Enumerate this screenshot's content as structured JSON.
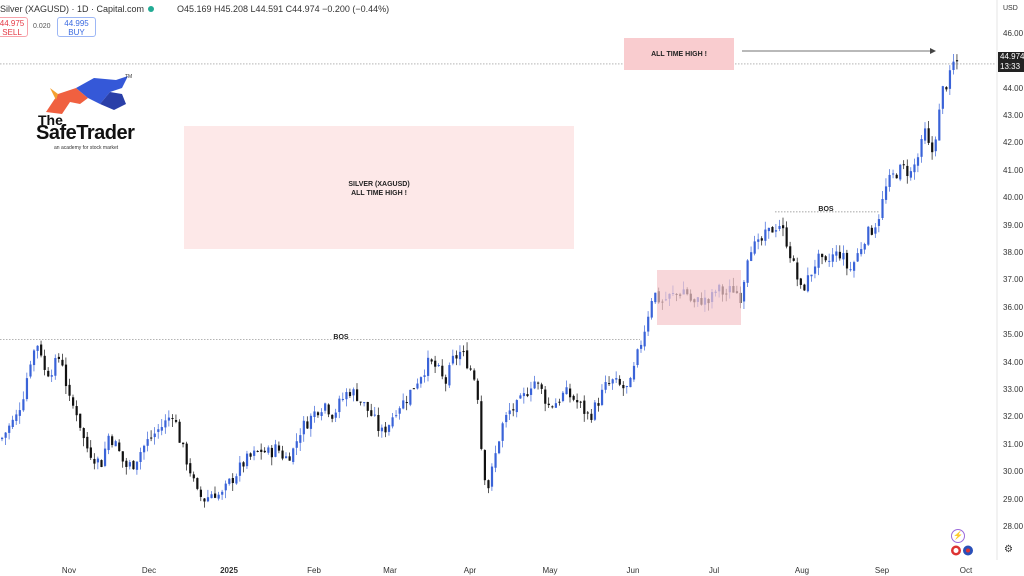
{
  "header": {
    "title": "Silver (XAGUSD) · 1D · Capital.com",
    "ohlc": "O45.169 H45.208 L44.591 C44.974 −0.200 (−0.44%)",
    "sell_price": "44.975",
    "sell_label": "SELL",
    "spread": "0.020",
    "buy_price": "44.995",
    "buy_label": "BUY"
  },
  "logo": {
    "the": "The",
    "name": "SafeTrader",
    "tagline": "an academy for stock market",
    "tm": "TM"
  },
  "annotations": {
    "center_box_line1": "SILVER (XAGUSD)",
    "center_box_line2": "ALL TIME HIGH !",
    "top_box": "ALL TIME HIGH !",
    "bos_1": "BOS",
    "bos_2": "BOS"
  },
  "axis": {
    "currency": "USD",
    "last_price": "44.974",
    "countdown": "13:33"
  },
  "colors": {
    "up": "#3a63d8",
    "down": "#111111",
    "highlight": "#fde8e8",
    "zone": "#f5c6ca"
  },
  "chart_data": {
    "type": "candlestick",
    "title": "",
    "ylim": [
      27.8,
      46.3
    ],
    "yticks": [
      28,
      29,
      30,
      31,
      32,
      33,
      34,
      35,
      36,
      37,
      38,
      39,
      40,
      41,
      42,
      43,
      44,
      45,
      46
    ],
    "ytick_labels": [
      "28.00",
      "29.00",
      "30.00",
      "31.00",
      "32.00",
      "33.00",
      "34.00",
      "35.00",
      "36.00",
      "37.00",
      "38.00",
      "39.00",
      "40.00",
      "41.00",
      "42.00",
      "43.00",
      "44.00",
      "45.00",
      "46.00"
    ],
    "xticks": [
      "Nov",
      "Dec",
      "2025",
      "Feb",
      "Mar",
      "Apr",
      "May",
      "Jun",
      "Jul",
      "Aug",
      "Sep",
      "Oct"
    ],
    "levels": [
      {
        "name": "BOS",
        "y": 34.85
      },
      {
        "name": "BOS",
        "y": 39.5
      },
      {
        "name": "ALL TIME HIGH",
        "y": 44.9
      }
    ],
    "path_anchors": [
      [
        0,
        31.2
      ],
      [
        5,
        31.5
      ],
      [
        15,
        32.0
      ],
      [
        22,
        32.8
      ],
      [
        30,
        34.2
      ],
      [
        38,
        34.8
      ],
      [
        44,
        33.6
      ],
      [
        52,
        33.8
      ],
      [
        60,
        34.3
      ],
      [
        68,
        32.6
      ],
      [
        76,
        32.2
      ],
      [
        84,
        31.0
      ],
      [
        92,
        30.6
      ],
      [
        100,
        30.3
      ],
      [
        108,
        31.4
      ],
      [
        116,
        30.9
      ],
      [
        124,
        30.2
      ],
      [
        132,
        30.3
      ],
      [
        140,
        30.8
      ],
      [
        148,
        31.2
      ],
      [
        156,
        31.5
      ],
      [
        164,
        31.8
      ],
      [
        172,
        32.2
      ],
      [
        180,
        31.0
      ],
      [
        188,
        30.2
      ],
      [
        196,
        29.2
      ],
      [
        204,
        29.0
      ],
      [
        212,
        29.3
      ],
      [
        220,
        29.1
      ],
      [
        228,
        29.6
      ],
      [
        236,
        30.0
      ],
      [
        244,
        30.4
      ],
      [
        252,
        30.6
      ],
      [
        260,
        30.8
      ],
      [
        268,
        30.7
      ],
      [
        276,
        30.9
      ],
      [
        284,
        30.5
      ],
      [
        292,
        30.8
      ],
      [
        300,
        31.6
      ],
      [
        308,
        31.9
      ],
      [
        316,
        32.3
      ],
      [
        324,
        32.5
      ],
      [
        332,
        32.1
      ],
      [
        340,
        32.6
      ],
      [
        348,
        33.0
      ],
      [
        356,
        32.8
      ],
      [
        364,
        32.4
      ],
      [
        372,
        32.0
      ],
      [
        380,
        31.4
      ],
      [
        388,
        31.8
      ],
      [
        396,
        32.4
      ],
      [
        404,
        32.6
      ],
      [
        412,
        33.1
      ],
      [
        420,
        33.6
      ],
      [
        428,
        34.0
      ],
      [
        436,
        33.8
      ],
      [
        444,
        33.2
      ],
      [
        452,
        34.1
      ],
      [
        460,
        34.4
      ],
      [
        468,
        33.9
      ],
      [
        476,
        33.2
      ],
      [
        480,
        31.0
      ],
      [
        486,
        29.3
      ],
      [
        492,
        30.2
      ],
      [
        500,
        31.6
      ],
      [
        508,
        32.2
      ],
      [
        516,
        32.4
      ],
      [
        524,
        32.8
      ],
      [
        532,
        33.4
      ],
      [
        540,
        33.0
      ],
      [
        548,
        32.4
      ],
      [
        556,
        32.6
      ],
      [
        564,
        32.9
      ],
      [
        572,
        32.7
      ],
      [
        580,
        32.4
      ],
      [
        588,
        32.0
      ],
      [
        596,
        32.5
      ],
      [
        604,
        33.1
      ],
      [
        612,
        33.3
      ],
      [
        620,
        33.1
      ],
      [
        628,
        33.0
      ],
      [
        636,
        34.2
      ],
      [
        644,
        35.3
      ],
      [
        652,
        36.6
      ],
      [
        660,
        36.2
      ],
      [
        668,
        36.4
      ],
      [
        676,
        36.5
      ],
      [
        684,
        36.7
      ],
      [
        692,
        36.1
      ],
      [
        700,
        36.3
      ],
      [
        708,
        36.2
      ],
      [
        716,
        36.7
      ],
      [
        724,
        36.5
      ],
      [
        732,
        36.7
      ],
      [
        740,
        36.4
      ],
      [
        748,
        38.3
      ],
      [
        756,
        38.2
      ],
      [
        764,
        38.6
      ],
      [
        772,
        38.9
      ],
      [
        778,
        39.1
      ],
      [
        786,
        38.4
      ],
      [
        792,
        37.6
      ],
      [
        800,
        36.6
      ],
      [
        808,
        37.1
      ],
      [
        816,
        37.8
      ],
      [
        824,
        37.5
      ],
      [
        832,
        37.9
      ],
      [
        840,
        38.0
      ],
      [
        848,
        37.3
      ],
      [
        856,
        37.9
      ],
      [
        864,
        38.6
      ],
      [
        872,
        38.9
      ],
      [
        878,
        39.4
      ],
      [
        886,
        40.5
      ],
      [
        894,
        40.9
      ],
      [
        902,
        41.1
      ],
      [
        910,
        40.9
      ],
      [
        918,
        41.6
      ],
      [
        924,
        42.4
      ],
      [
        930,
        41.5
      ],
      [
        936,
        42.6
      ],
      [
        942,
        44.0
      ],
      [
        948,
        44.3
      ],
      [
        952,
        44.9
      ],
      [
        956,
        44.97
      ]
    ]
  }
}
